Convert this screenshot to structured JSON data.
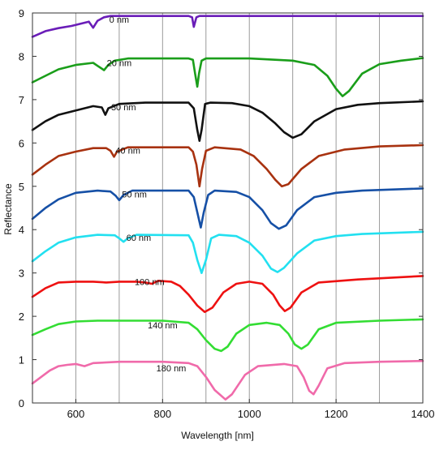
{
  "chart_data": {
    "type": "line",
    "title": "",
    "xlabel": "Wavelength [nm]",
    "ylabel": "Reflectance",
    "xlim": [
      500,
      1400
    ],
    "ylim": [
      0,
      9
    ],
    "grid": "vertical",
    "x_ticks": [
      600,
      800,
      1000,
      1200,
      1400
    ],
    "y_ticks": [
      0,
      1,
      2,
      3,
      4,
      5,
      6,
      7,
      8,
      9
    ],
    "x_tick_labels": [
      "600",
      "800",
      "1000",
      "1200",
      "1400"
    ],
    "y_tick_labels": [
      "0",
      "1",
      "2",
      "3",
      "4",
      "5",
      "6",
      "7",
      "8",
      "9"
    ],
    "series": [
      {
        "name": "0 nm",
        "color": "#6a1db8",
        "label_at": [
          700,
          8.85
        ],
        "points": [
          [
            500,
            8.45
          ],
          [
            530,
            8.58
          ],
          [
            560,
            8.65
          ],
          [
            590,
            8.7
          ],
          [
            610,
            8.75
          ],
          [
            630,
            8.8
          ],
          [
            640,
            8.66
          ],
          [
            650,
            8.82
          ],
          [
            665,
            8.9
          ],
          [
            680,
            8.93
          ],
          [
            700,
            8.93
          ],
          [
            860,
            8.93
          ],
          [
            868,
            8.9
          ],
          [
            872,
            8.68
          ],
          [
            878,
            8.9
          ],
          [
            885,
            8.93
          ],
          [
            1000,
            8.93
          ],
          [
            1120,
            8.93
          ],
          [
            1400,
            8.93
          ]
        ]
      },
      {
        "name": "20 nm",
        "color": "#1a9e1a",
        "label_at": [
          700,
          7.85
        ],
        "points": [
          [
            500,
            7.4
          ],
          [
            530,
            7.55
          ],
          [
            560,
            7.7
          ],
          [
            600,
            7.8
          ],
          [
            640,
            7.85
          ],
          [
            650,
            7.78
          ],
          [
            665,
            7.68
          ],
          [
            675,
            7.8
          ],
          [
            690,
            7.9
          ],
          [
            720,
            7.95
          ],
          [
            860,
            7.95
          ],
          [
            870,
            7.92
          ],
          [
            875,
            7.6
          ],
          [
            880,
            7.3
          ],
          [
            884,
            7.6
          ],
          [
            890,
            7.9
          ],
          [
            900,
            7.95
          ],
          [
            1000,
            7.95
          ],
          [
            1100,
            7.9
          ],
          [
            1150,
            7.8
          ],
          [
            1180,
            7.55
          ],
          [
            1200,
            7.25
          ],
          [
            1215,
            7.08
          ],
          [
            1230,
            7.2
          ],
          [
            1260,
            7.6
          ],
          [
            1300,
            7.82
          ],
          [
            1350,
            7.9
          ],
          [
            1400,
            7.96
          ]
        ]
      },
      {
        "name": "30 nm",
        "color": "#111111",
        "label_at": [
          710,
          6.83
        ],
        "points": [
          [
            500,
            6.3
          ],
          [
            530,
            6.5
          ],
          [
            560,
            6.65
          ],
          [
            600,
            6.75
          ],
          [
            640,
            6.85
          ],
          [
            660,
            6.82
          ],
          [
            668,
            6.65
          ],
          [
            675,
            6.8
          ],
          [
            700,
            6.9
          ],
          [
            760,
            6.93
          ],
          [
            860,
            6.93
          ],
          [
            872,
            6.8
          ],
          [
            880,
            6.3
          ],
          [
            885,
            6.05
          ],
          [
            890,
            6.3
          ],
          [
            898,
            6.9
          ],
          [
            910,
            6.93
          ],
          [
            960,
            6.92
          ],
          [
            1000,
            6.85
          ],
          [
            1030,
            6.7
          ],
          [
            1060,
            6.45
          ],
          [
            1080,
            6.25
          ],
          [
            1100,
            6.12
          ],
          [
            1120,
            6.2
          ],
          [
            1150,
            6.5
          ],
          [
            1200,
            6.78
          ],
          [
            1250,
            6.88
          ],
          [
            1300,
            6.92
          ],
          [
            1400,
            6.96
          ]
        ]
      },
      {
        "name": "40 nm",
        "color": "#a83210",
        "label_at": [
          720,
          5.83
        ],
        "points": [
          [
            500,
            5.27
          ],
          [
            530,
            5.5
          ],
          [
            560,
            5.7
          ],
          [
            600,
            5.8
          ],
          [
            640,
            5.88
          ],
          [
            670,
            5.88
          ],
          [
            680,
            5.82
          ],
          [
            688,
            5.68
          ],
          [
            695,
            5.8
          ],
          [
            720,
            5.9
          ],
          [
            860,
            5.9
          ],
          [
            870,
            5.8
          ],
          [
            878,
            5.5
          ],
          [
            885,
            5.0
          ],
          [
            891,
            5.4
          ],
          [
            900,
            5.82
          ],
          [
            920,
            5.9
          ],
          [
            980,
            5.85
          ],
          [
            1010,
            5.7
          ],
          [
            1040,
            5.4
          ],
          [
            1060,
            5.15
          ],
          [
            1075,
            5.0
          ],
          [
            1090,
            5.05
          ],
          [
            1120,
            5.4
          ],
          [
            1160,
            5.7
          ],
          [
            1220,
            5.85
          ],
          [
            1300,
            5.92
          ],
          [
            1400,
            5.95
          ]
        ]
      },
      {
        "name": "50 nm",
        "color": "#1650a6",
        "label_at": [
          735,
          4.82
        ],
        "points": [
          [
            500,
            4.25
          ],
          [
            530,
            4.5
          ],
          [
            560,
            4.7
          ],
          [
            600,
            4.85
          ],
          [
            650,
            4.9
          ],
          [
            680,
            4.88
          ],
          [
            692,
            4.78
          ],
          [
            700,
            4.68
          ],
          [
            710,
            4.8
          ],
          [
            730,
            4.9
          ],
          [
            860,
            4.9
          ],
          [
            872,
            4.75
          ],
          [
            880,
            4.4
          ],
          [
            888,
            4.05
          ],
          [
            895,
            4.4
          ],
          [
            905,
            4.8
          ],
          [
            920,
            4.9
          ],
          [
            970,
            4.87
          ],
          [
            1000,
            4.75
          ],
          [
            1030,
            4.45
          ],
          [
            1050,
            4.15
          ],
          [
            1068,
            4.02
          ],
          [
            1085,
            4.1
          ],
          [
            1110,
            4.45
          ],
          [
            1150,
            4.75
          ],
          [
            1200,
            4.85
          ],
          [
            1260,
            4.9
          ],
          [
            1400,
            4.95
          ]
        ]
      },
      {
        "name": "60 nm",
        "color": "#22e0f0",
        "label_at": [
          745,
          3.82
        ],
        "points": [
          [
            500,
            3.27
          ],
          [
            530,
            3.5
          ],
          [
            560,
            3.7
          ],
          [
            600,
            3.82
          ],
          [
            650,
            3.88
          ],
          [
            690,
            3.87
          ],
          [
            700,
            3.8
          ],
          [
            710,
            3.72
          ],
          [
            720,
            3.8
          ],
          [
            740,
            3.88
          ],
          [
            860,
            3.87
          ],
          [
            870,
            3.7
          ],
          [
            880,
            3.3
          ],
          [
            890,
            3.0
          ],
          [
            900,
            3.3
          ],
          [
            912,
            3.8
          ],
          [
            930,
            3.88
          ],
          [
            970,
            3.85
          ],
          [
            1000,
            3.7
          ],
          [
            1030,
            3.4
          ],
          [
            1050,
            3.1
          ],
          [
            1065,
            3.02
          ],
          [
            1080,
            3.12
          ],
          [
            1110,
            3.45
          ],
          [
            1150,
            3.75
          ],
          [
            1200,
            3.85
          ],
          [
            1260,
            3.9
          ],
          [
            1400,
            3.95
          ]
        ]
      },
      {
        "name": "100 nm",
        "color": "#ee1111",
        "label_at": [
          770,
          2.8
        ],
        "points": [
          [
            500,
            2.45
          ],
          [
            530,
            2.65
          ],
          [
            560,
            2.78
          ],
          [
            600,
            2.8
          ],
          [
            640,
            2.8
          ],
          [
            670,
            2.78
          ],
          [
            700,
            2.8
          ],
          [
            740,
            2.8
          ],
          [
            760,
            2.78
          ],
          [
            775,
            2.75
          ],
          [
            790,
            2.82
          ],
          [
            820,
            2.8
          ],
          [
            840,
            2.7
          ],
          [
            860,
            2.5
          ],
          [
            880,
            2.25
          ],
          [
            897,
            2.1
          ],
          [
            915,
            2.2
          ],
          [
            940,
            2.55
          ],
          [
            970,
            2.75
          ],
          [
            1000,
            2.8
          ],
          [
            1030,
            2.75
          ],
          [
            1055,
            2.5
          ],
          [
            1070,
            2.25
          ],
          [
            1082,
            2.12
          ],
          [
            1095,
            2.2
          ],
          [
            1120,
            2.55
          ],
          [
            1160,
            2.78
          ],
          [
            1250,
            2.85
          ],
          [
            1400,
            2.93
          ]
        ]
      },
      {
        "name": "140 nm",
        "color": "#33dd33",
        "label_at": [
          800,
          1.8
        ],
        "points": [
          [
            500,
            1.57
          ],
          [
            530,
            1.7
          ],
          [
            560,
            1.82
          ],
          [
            600,
            1.88
          ],
          [
            650,
            1.9
          ],
          [
            700,
            1.9
          ],
          [
            800,
            1.9
          ],
          [
            860,
            1.85
          ],
          [
            880,
            1.7
          ],
          [
            900,
            1.45
          ],
          [
            920,
            1.25
          ],
          [
            935,
            1.2
          ],
          [
            950,
            1.3
          ],
          [
            970,
            1.6
          ],
          [
            1000,
            1.8
          ],
          [
            1040,
            1.85
          ],
          [
            1070,
            1.8
          ],
          [
            1090,
            1.6
          ],
          [
            1105,
            1.35
          ],
          [
            1120,
            1.25
          ],
          [
            1135,
            1.35
          ],
          [
            1160,
            1.7
          ],
          [
            1200,
            1.85
          ],
          [
            1300,
            1.9
          ],
          [
            1400,
            1.93
          ]
        ]
      },
      {
        "name": "180 nm",
        "color": "#f06aaa",
        "label_at": [
          820,
          0.8
        ],
        "points": [
          [
            500,
            0.45
          ],
          [
            520,
            0.6
          ],
          [
            540,
            0.75
          ],
          [
            560,
            0.85
          ],
          [
            580,
            0.88
          ],
          [
            600,
            0.9
          ],
          [
            620,
            0.85
          ],
          [
            640,
            0.92
          ],
          [
            700,
            0.95
          ],
          [
            800,
            0.95
          ],
          [
            860,
            0.92
          ],
          [
            880,
            0.85
          ],
          [
            900,
            0.6
          ],
          [
            920,
            0.3
          ],
          [
            945,
            0.08
          ],
          [
            960,
            0.2
          ],
          [
            990,
            0.65
          ],
          [
            1020,
            0.85
          ],
          [
            1080,
            0.9
          ],
          [
            1110,
            0.85
          ],
          [
            1125,
            0.6
          ],
          [
            1138,
            0.28
          ],
          [
            1148,
            0.2
          ],
          [
            1160,
            0.4
          ],
          [
            1180,
            0.8
          ],
          [
            1220,
            0.92
          ],
          [
            1300,
            0.95
          ],
          [
            1400,
            0.97
          ]
        ]
      }
    ]
  }
}
